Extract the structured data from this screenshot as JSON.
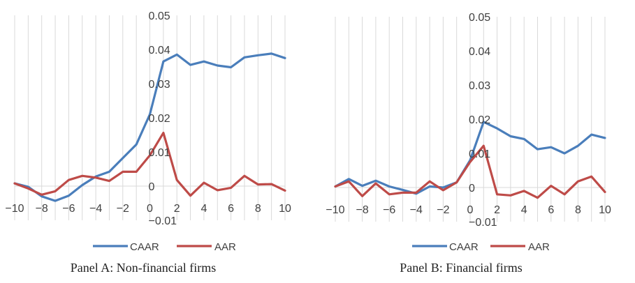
{
  "colors": {
    "caar": "#4a7ebb",
    "aar": "#be4b48",
    "grid": "#d9d9d9",
    "text": "#404040"
  },
  "chart_data": [
    {
      "type": "line",
      "caption": "Panel A: Non-financial firms",
      "x": [
        -10,
        -9,
        -8,
        -7,
        -6,
        -5,
        -4,
        -3,
        -2,
        -1,
        0,
        1,
        2,
        3,
        4,
        5,
        6,
        7,
        8,
        9,
        10
      ],
      "x_tick_labels": [
        "−10",
        "−8",
        "−6",
        "−4",
        "−2",
        "0",
        "2",
        "4",
        "6",
        "8",
        "10"
      ],
      "x_tick_values": [
        -10,
        -8,
        -6,
        -4,
        -2,
        0,
        2,
        4,
        6,
        8,
        10
      ],
      "y_tick_labels": [
        "−0.01",
        "0",
        "0.01",
        "0.02",
        "0.03",
        "0.04",
        "0.05"
      ],
      "y_tick_values": [
        -0.01,
        0,
        0.01,
        0.02,
        0.03,
        0.04,
        0.05
      ],
      "xlim": [
        -10,
        10
      ],
      "ylim": [
        -0.01,
        0.05
      ],
      "grid": "vertical",
      "legend_position": "bottom",
      "series": [
        {
          "name": "CAAR",
          "color": "#4a7ebb",
          "values": [
            0.0008,
            -0.0002,
            -0.003,
            -0.0043,
            -0.0028,
            0.0003,
            0.0028,
            0.0042,
            0.0082,
            0.0122,
            0.021,
            0.0365,
            0.0385,
            0.0355,
            0.0365,
            0.0353,
            0.0348,
            0.0377,
            0.0383,
            0.0388,
            0.0375
          ]
        },
        {
          "name": "AAR",
          "color": "#be4b48",
          "values": [
            0.0008,
            -0.0007,
            -0.0025,
            -0.0015,
            0.0018,
            0.003,
            0.0025,
            0.0015,
            0.0042,
            0.0042,
            0.009,
            0.0156,
            0.0018,
            -0.0028,
            0.001,
            -0.0012,
            -0.0005,
            0.003,
            0.0005,
            0.0006,
            -0.0013
          ]
        }
      ]
    },
    {
      "type": "line",
      "caption": "Panel B: Financial firms",
      "x": [
        -10,
        -9,
        -8,
        -7,
        -6,
        -5,
        -4,
        -3,
        -2,
        -1,
        0,
        1,
        2,
        3,
        4,
        5,
        6,
        7,
        8,
        9,
        10
      ],
      "x_tick_labels": [
        "−10",
        "−8",
        "−6",
        "−4",
        "−2",
        "0",
        "2",
        "4",
        "6",
        "8",
        "10"
      ],
      "x_tick_values": [
        -10,
        -8,
        -6,
        -4,
        -2,
        0,
        2,
        4,
        6,
        8,
        10
      ],
      "y_tick_labels": [
        "−0.01",
        "0",
        "0.01",
        "0.02",
        "0.03",
        "0.04",
        "0.05"
      ],
      "y_tick_values": [
        -0.01,
        0,
        0.01,
        0.02,
        0.03,
        0.04,
        0.05
      ],
      "xlim": [
        -10,
        10
      ],
      "ylim": [
        -0.01,
        0.05
      ],
      "grid": "vertical",
      "legend_position": "bottom",
      "series": [
        {
          "name": "CAAR",
          "color": "#4a7ebb",
          "values": [
            0.0003,
            0.0025,
            0.0005,
            0.002,
            0.0003,
            -0.0007,
            -0.0018,
            0.0003,
            0.0,
            0.0015,
            0.008,
            0.0192,
            0.0173,
            0.015,
            0.0142,
            0.0112,
            0.0118,
            0.01,
            0.0122,
            0.0155,
            0.0145
          ]
        },
        {
          "name": "AAR",
          "color": "#be4b48",
          "values": [
            0.0003,
            0.0018,
            -0.0025,
            0.0012,
            -0.002,
            -0.0015,
            -0.0015,
            0.0018,
            -0.0008,
            0.0015,
            0.0075,
            0.0122,
            -0.002,
            -0.0023,
            -0.001,
            -0.003,
            0.0005,
            -0.002,
            0.0018,
            0.0032,
            -0.0013
          ]
        }
      ]
    }
  ]
}
